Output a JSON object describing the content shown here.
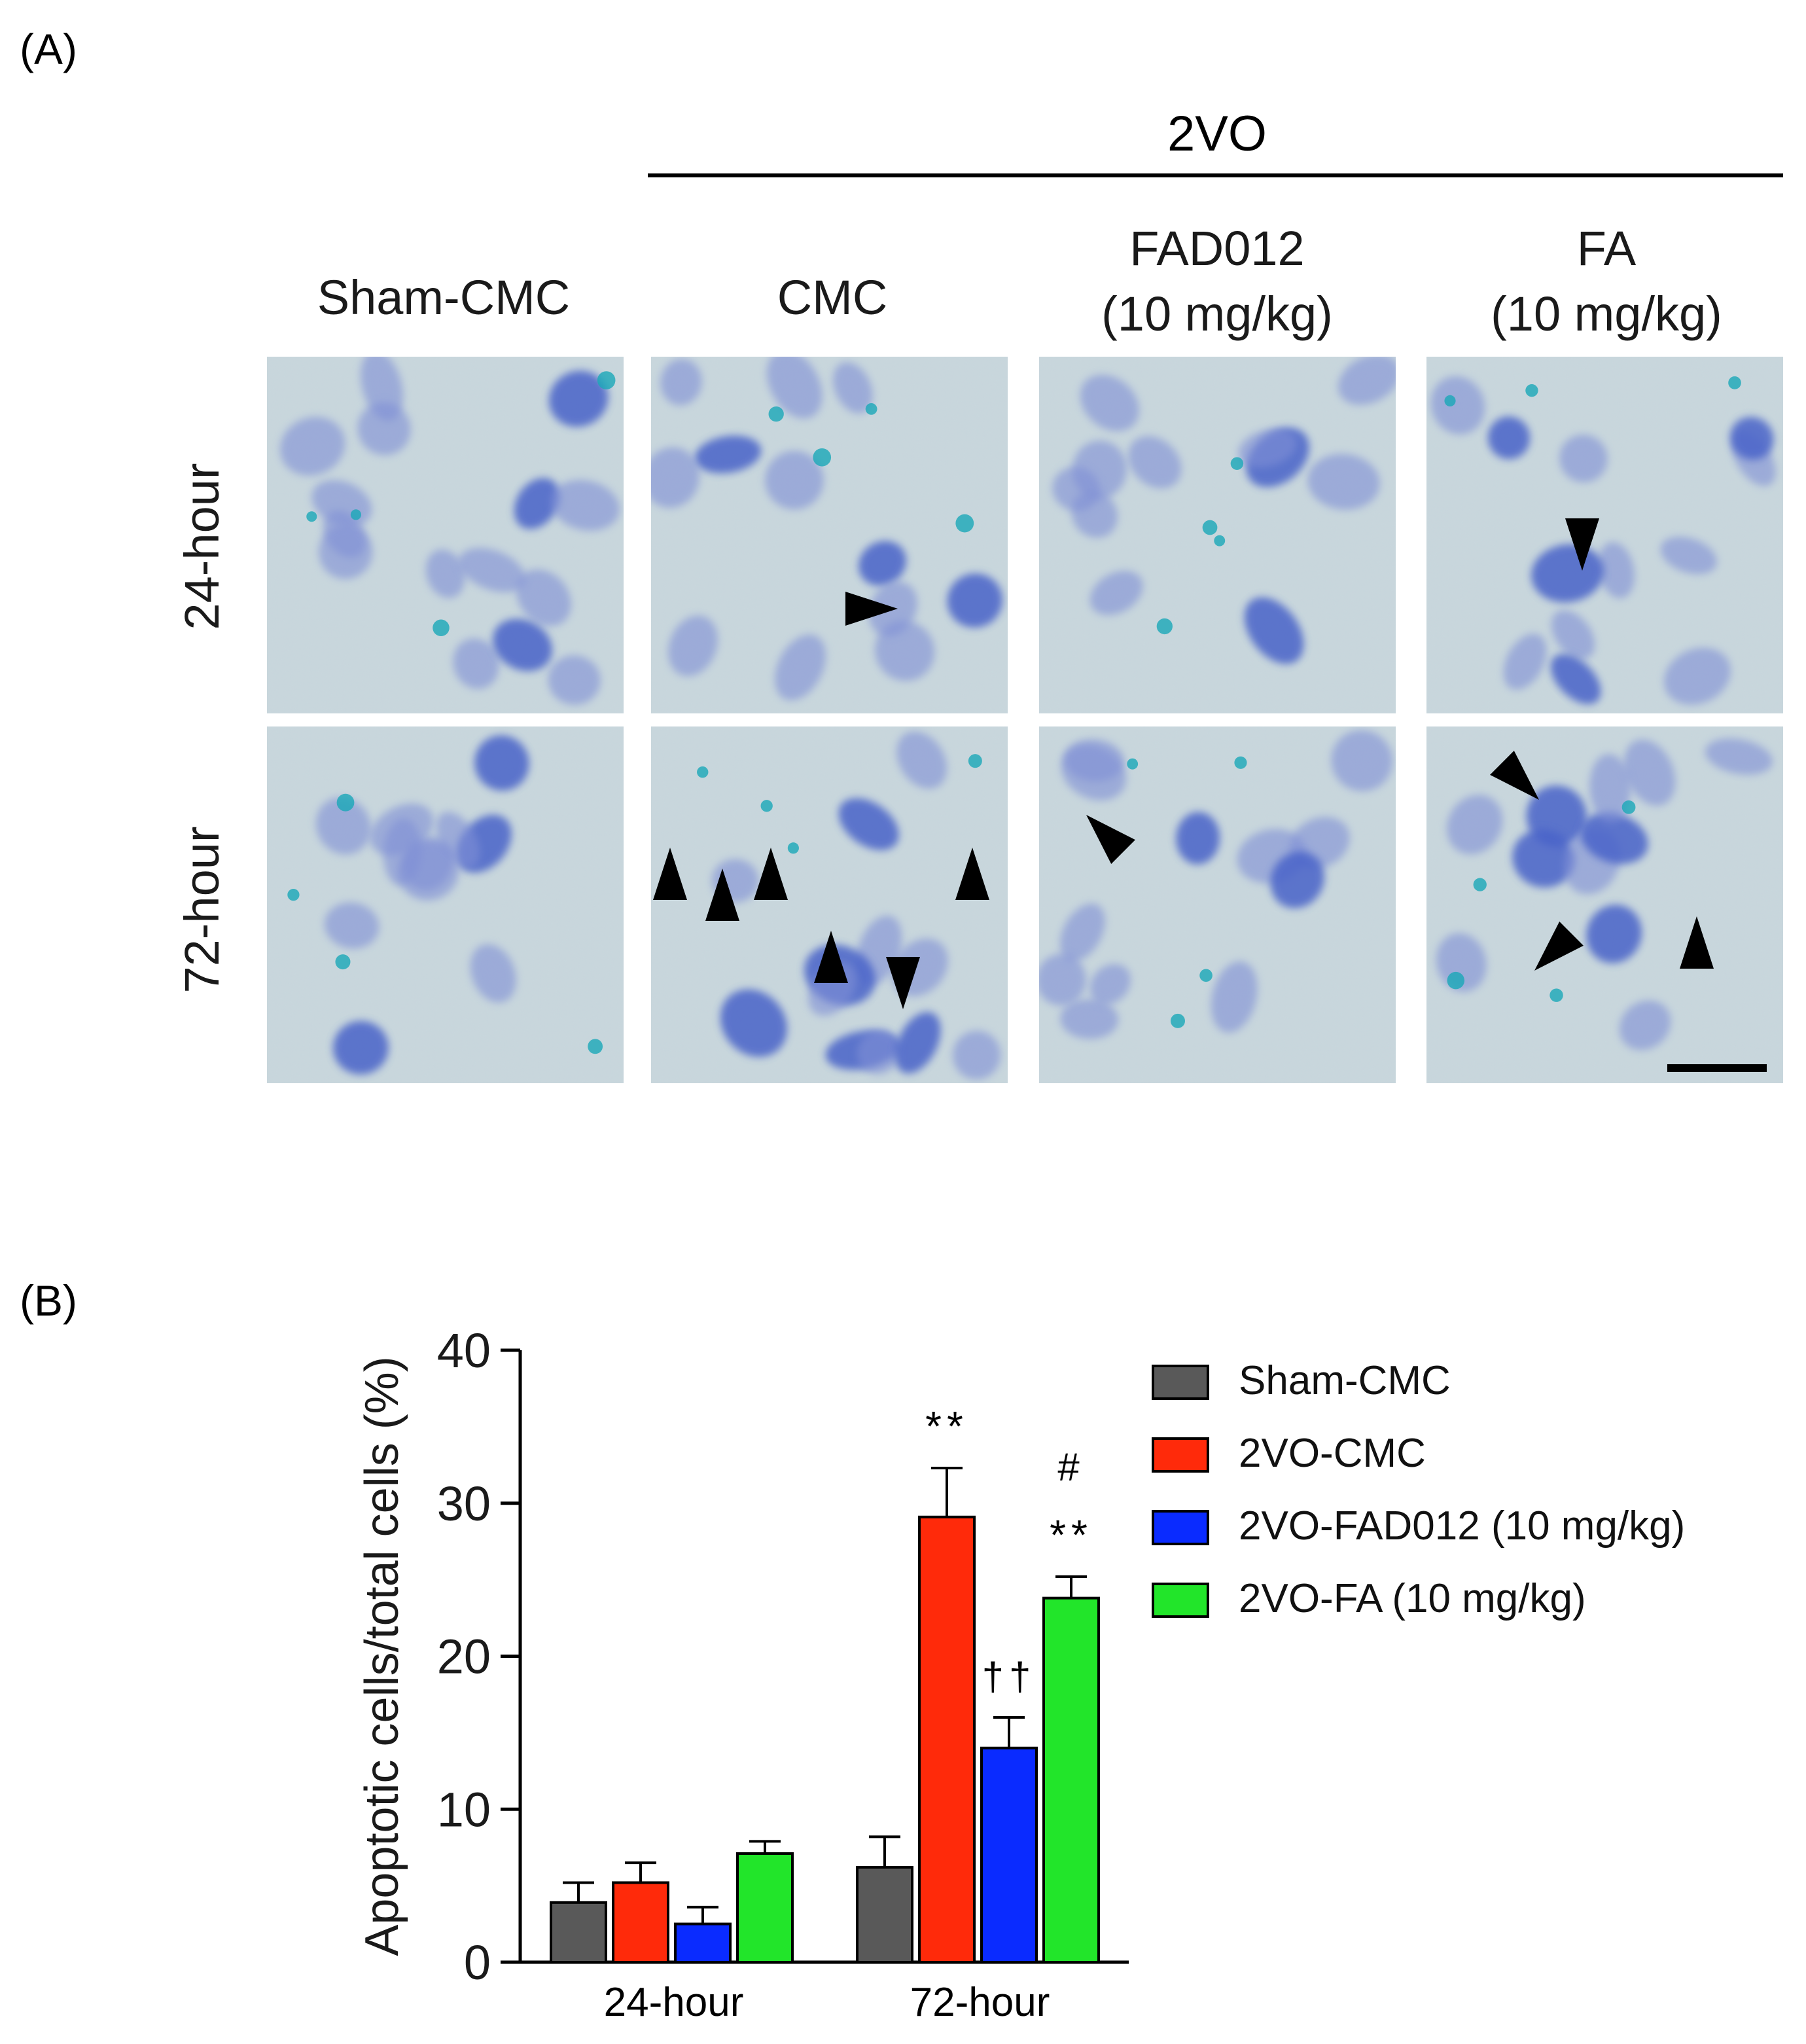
{
  "panel_a": {
    "label": "(A)",
    "group_label": "2VO",
    "columns": [
      {
        "line1": "Sham-CMC",
        "line2": ""
      },
      {
        "line1": "CMC",
        "line2": ""
      },
      {
        "line1": "FAD012",
        "line2": "(10 mg/kg)"
      },
      {
        "line1": "FA",
        "line2": "(10 mg/kg)"
      }
    ],
    "rows": [
      "24-hour",
      "72-hour"
    ]
  },
  "panel_b": {
    "label": "(B)"
  },
  "chart_data": {
    "type": "bar",
    "title": "",
    "xlabel": "",
    "ylabel": "Apoptotic cells/total cells (%)",
    "ylim": [
      0,
      40
    ],
    "yticks": [
      "0",
      "10",
      "20",
      "30",
      "40"
    ],
    "categories": [
      "24-hour",
      "72-hour"
    ],
    "legend_position": "right",
    "series": [
      {
        "name": "Sham-CMC",
        "color": "#595959",
        "values": [
          3.9,
          6.2
        ],
        "errors": [
          1.3,
          2.0
        ],
        "annotations": [
          "",
          ""
        ]
      },
      {
        "name": "2VO-CMC",
        "color": "#ff2a0a",
        "values": [
          5.2,
          29.1
        ],
        "errors": [
          1.3,
          3.2
        ],
        "annotations": [
          "",
          "**"
        ]
      },
      {
        "name": "2VO-FAD012 (10 mg/kg)",
        "color": "#0a2bff",
        "values": [
          2.5,
          14.0
        ],
        "errors": [
          1.1,
          2.0
        ],
        "annotations": [
          "",
          "††"
        ]
      },
      {
        "name": "2VO-FA (10 mg/kg)",
        "color": "#22e52a",
        "values": [
          7.1,
          23.8
        ],
        "errors": [
          0.8,
          1.4
        ],
        "annotations": [
          "",
          "#\n**"
        ]
      }
    ]
  }
}
